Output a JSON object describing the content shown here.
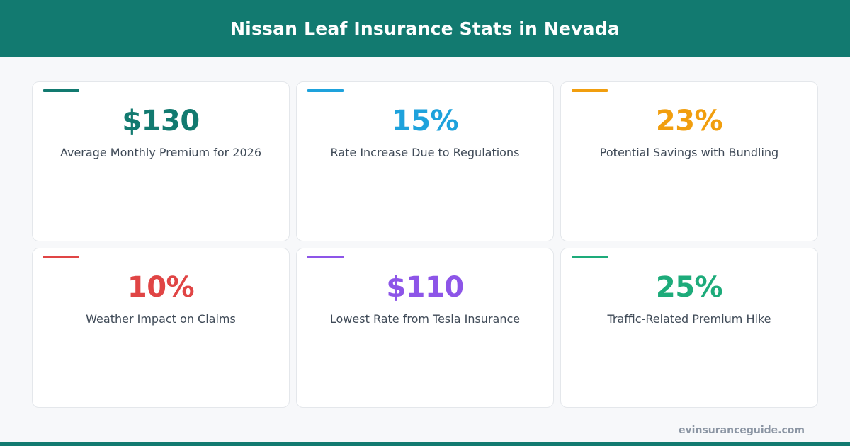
{
  "header": {
    "title": "Nissan Leaf Insurance Stats in Nevada"
  },
  "colors": {
    "brand": "#127a70",
    "background": "#f7f8fa"
  },
  "cards": [
    {
      "value": "$130",
      "label": "Average Monthly Premium for 2026",
      "color": "#127a70"
    },
    {
      "value": "15%",
      "label": "Rate Increase Due to Regulations",
      "color": "#1ea2dc"
    },
    {
      "value": "23%",
      "label": "Potential Savings with Bundling",
      "color": "#f19e0e"
    },
    {
      "value": "10%",
      "label": "Weather Impact on Claims",
      "color": "#e04545"
    },
    {
      "value": "$110",
      "label": "Lowest Rate from Tesla Insurance",
      "color": "#8d55e8"
    },
    {
      "value": "25%",
      "label": "Traffic-Related Premium Hike",
      "color": "#1dab7a"
    }
  ],
  "footer": {
    "site": "evinsuranceguide.com"
  }
}
